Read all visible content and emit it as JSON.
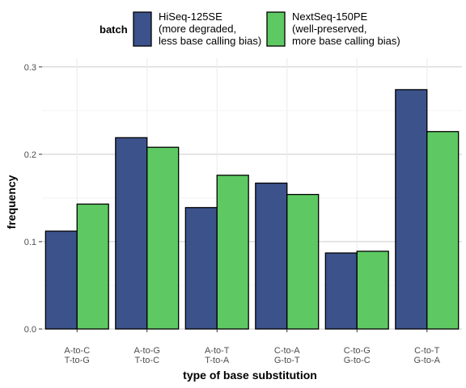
{
  "chart_data": {
    "type": "bar",
    "categories": [
      [
        "A-to-C",
        "T-to-G"
      ],
      [
        "A-to-G",
        "T-to-C"
      ],
      [
        "A-to-T",
        "T-to-A"
      ],
      [
        "C-to-A",
        "G-to-T"
      ],
      [
        "C-to-G",
        "G-to-C"
      ],
      [
        "C-to-T",
        "G-to-A"
      ]
    ],
    "series": [
      {
        "name": [
          "HiSeq-125SE",
          "(more degraded,",
          "less base calling bias)"
        ],
        "color": "#3b528b",
        "values": [
          0.112,
          0.219,
          0.139,
          0.167,
          0.087,
          0.274
        ]
      },
      {
        "name": [
          "NextSeq-150PE",
          "(well-preserved,",
          "more base calling bias)"
        ],
        "color": "#5ec962",
        "values": [
          0.143,
          0.208,
          0.176,
          0.154,
          0.089,
          0.226
        ]
      }
    ],
    "xlabel": "type of base substitution",
    "ylabel": "frequency",
    "ylim": [
      0,
      0.31
    ],
    "yticks": [
      0.0,
      0.1,
      0.2,
      0.3
    ],
    "ytick_labels": [
      "0.0",
      "0.1",
      "0.2",
      "0.3"
    ],
    "legend_title": "batch",
    "legend_position": "top",
    "grid": true
  }
}
